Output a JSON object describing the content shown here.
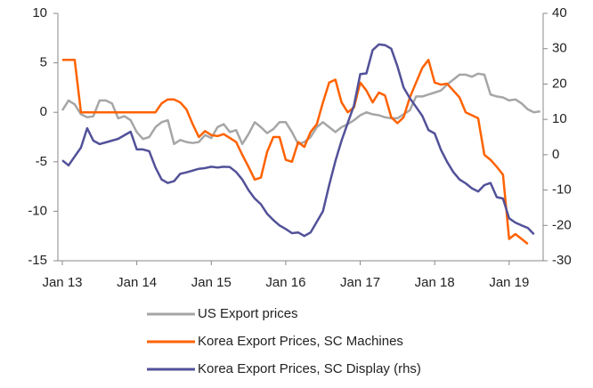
{
  "chart_data": {
    "type": "line",
    "categories": [
      "Jan 13",
      null,
      null,
      null,
      null,
      null,
      null,
      null,
      null,
      null,
      null,
      null,
      "Jan 14",
      null,
      null,
      null,
      null,
      null,
      null,
      null,
      null,
      null,
      null,
      null,
      "Jan 15",
      null,
      null,
      null,
      null,
      null,
      null,
      null,
      null,
      null,
      null,
      null,
      "Jan 16",
      null,
      null,
      null,
      null,
      null,
      null,
      null,
      null,
      null,
      null,
      null,
      "Jan 17",
      null,
      null,
      null,
      null,
      null,
      null,
      null,
      null,
      null,
      null,
      null,
      "Jan 18",
      null,
      null,
      null,
      null,
      null,
      null,
      null,
      null,
      null,
      null,
      null,
      "Jan 19",
      null,
      null,
      null,
      null,
      null
    ],
    "ylim": [
      -15,
      10
    ],
    "yticks": [
      10,
      5,
      0,
      -5,
      -10,
      -15
    ],
    "y2lim": [
      -30,
      40
    ],
    "y2ticks": [
      40,
      30,
      20,
      10,
      0,
      -10,
      -20,
      -30
    ],
    "series": [
      {
        "name": "US Export prices",
        "color": "#a6a6a6",
        "values": [
          0.2,
          1.2,
          0.8,
          -0.2,
          -0.5,
          -0.4,
          1.2,
          1.2,
          0.9,
          -0.6,
          -0.4,
          -0.8,
          -2,
          -2.7,
          -2.5,
          -1.5,
          -1.0,
          -0.8,
          -3.2,
          -2.8,
          -3.0,
          -3.1,
          -3.0,
          -2.3,
          -2.6,
          -1.5,
          -1.2,
          -2.0,
          -1.8,
          -3.2,
          -2.2,
          -1.0,
          -1.5,
          -2.1,
          -1.7,
          -1.0,
          -1.0,
          -2.0,
          -3.2,
          -3.0,
          -2.5,
          -1.5,
          -1.0,
          -1.5,
          -2.0,
          -1.5,
          -1.2,
          -0.8,
          -0.3,
          0,
          -0.2,
          -0.3,
          -0.5,
          -0.6,
          -0.6,
          -0.2,
          0.2,
          1.6,
          1.6,
          1.8,
          2.0,
          2.2,
          2.8,
          3.3,
          3.8,
          3.8,
          3.6,
          3.9,
          3.8,
          1.8,
          1.6,
          1.5,
          1.2,
          1.3,
          0.9,
          0.3,
          0,
          0.1
        ]
      },
      {
        "name": "Korea Export Prices, SC Machines",
        "color": "#ff6200",
        "values": [
          5.3,
          5.3,
          5.3,
          0,
          0,
          0,
          0,
          0,
          0,
          0,
          0,
          0,
          0,
          0,
          0,
          0,
          0.9,
          1.3,
          1.3,
          1.0,
          0.3,
          -1.2,
          -2.5,
          -1.9,
          -2.3,
          -2.4,
          -2.2,
          -2.6,
          -3.0,
          -4.3,
          -5.5,
          -6.8,
          -6.6,
          -4.0,
          -2.5,
          -2.5,
          -4.8,
          -5.0,
          -3.0,
          -3.5,
          -2.0,
          -1.2,
          1.0,
          3.0,
          3.3,
          1.0,
          0,
          0.5,
          3.0,
          2.2,
          1.0,
          2.0,
          1.7,
          -0.5,
          -1.1,
          -0.5,
          1.5,
          3.0,
          4.5,
          5.3,
          3.0,
          2.8,
          2.9,
          2.2,
          1.5,
          0,
          -0.3,
          -0.6,
          -4.3,
          -4.8,
          -5.5,
          -6.3,
          -12.8,
          -12.3,
          -12.8,
          -13.3,
          null,
          null
        ]
      },
      {
        "name": "Korea Export Prices, SC Display (rhs)",
        "color": "#525199",
        "axis": "y2",
        "values": [
          -1.6,
          -3,
          -0.5,
          2,
          7.5,
          4,
          3,
          3.5,
          4,
          4.5,
          5.5,
          6.5,
          1.5,
          1.5,
          1,
          -3.6,
          -7,
          -8,
          -7.5,
          -5.4,
          -5,
          -4.5,
          -4,
          -3.8,
          -3.4,
          -3.6,
          -3.4,
          -3.5,
          -4.9,
          -7,
          -10,
          -12.4,
          -14,
          -16.7,
          -18.5,
          -20,
          -21,
          -22.2,
          -22,
          -23,
          -22,
          -19,
          -16,
          -8.6,
          -1.8,
          4,
          9,
          14,
          22.8,
          23,
          29.6,
          31.2,
          31,
          30,
          25,
          19,
          16,
          13.5,
          11,
          7,
          6,
          1.4,
          -2,
          -4.9,
          -7,
          -8.1,
          -9.5,
          -10.4,
          -8.6,
          -8,
          -12,
          -12.4,
          -18,
          -19.2,
          -20,
          -20.7,
          -22.5,
          null
        ]
      }
    ]
  }
}
